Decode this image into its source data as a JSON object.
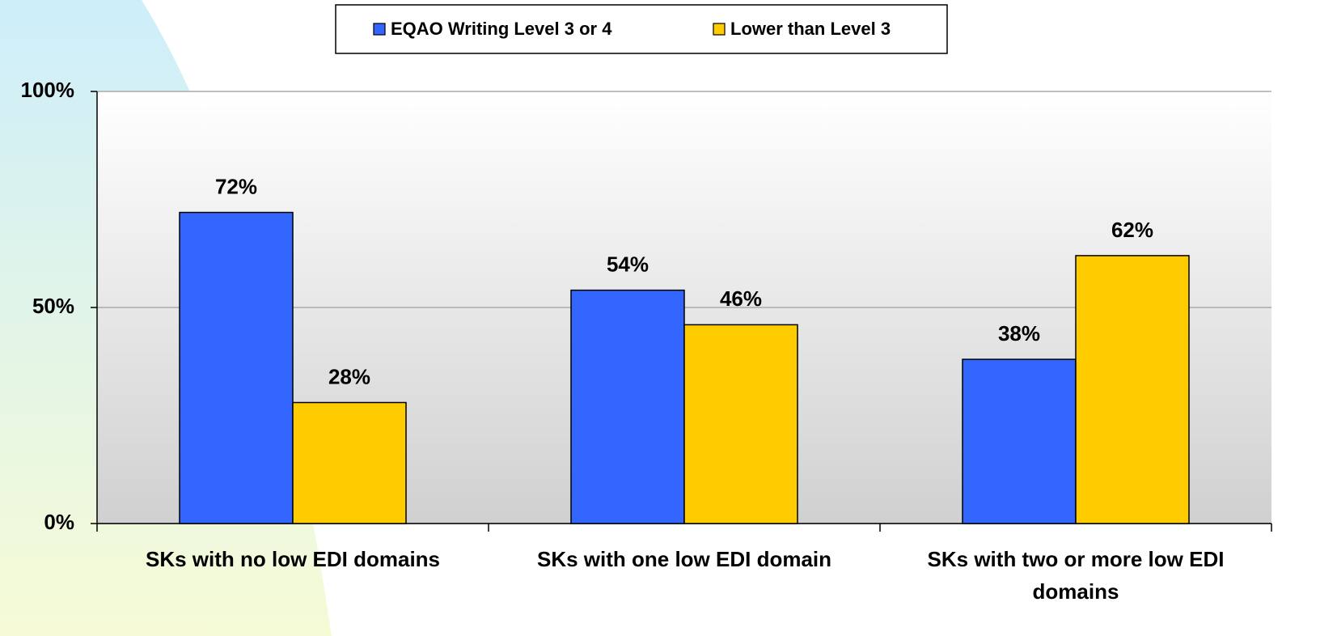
{
  "chart_data": {
    "type": "bar",
    "categories": [
      "SKs with no low EDI domains",
      "SKs with one low EDI domain",
      "SKs with two or more low EDI domains"
    ],
    "series": [
      {
        "name": "EQAO Writing Level 3 or 4",
        "color": "#3366ff",
        "values": [
          72,
          54,
          38
        ],
        "value_labels": [
          "72%",
          "54%",
          "38%"
        ]
      },
      {
        "name": "Lower than Level 3",
        "color": "#ffcc00",
        "values": [
          28,
          46,
          62
        ],
        "value_labels": [
          "28%",
          "46%",
          "62%"
        ]
      }
    ],
    "ylim": [
      0,
      100
    ],
    "yticks": [
      {
        "value": 0,
        "label": "0%"
      },
      {
        "value": 50,
        "label": "50%"
      },
      {
        "value": 100,
        "label": "100%"
      }
    ],
    "grid": true,
    "legend": "top"
  }
}
